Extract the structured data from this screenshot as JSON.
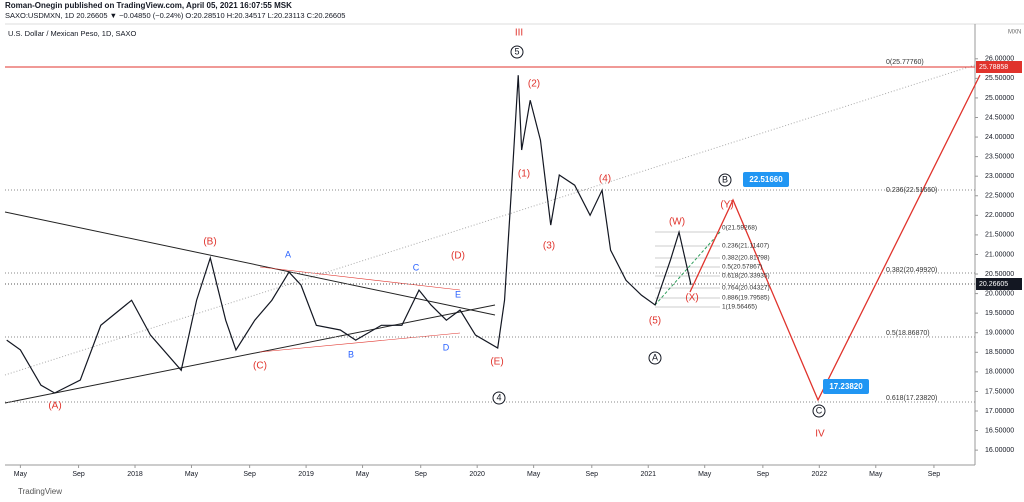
{
  "chart_data": {
    "type": "line",
    "header": {
      "publisher": "Roman-Onegin published on TradingView.com, April 05, 2021 16:07:55 MSK",
      "ticker": "SAXO:USDMXN, 1D 20.26605 ▼ −0.04850 (−0.24%) O:20.28510 H:20.34517 L:20.23113 C:20.26605"
    },
    "title": "U.S. Dollar / Mexican Peso, 1D, SAXO",
    "currency": "MXN",
    "footer": "TradingView",
    "series": [
      {
        "name": "USDMXN",
        "color": "#131722",
        "x": [
          2017.25,
          2017.33,
          2017.45,
          2017.53,
          2017.68,
          2017.8,
          2017.98,
          2018.09,
          2018.27,
          2018.36,
          2018.44,
          2018.53,
          2018.59,
          2018.7,
          2018.8,
          2018.9,
          2018.97,
          2019.06,
          2019.2,
          2019.29,
          2019.44,
          2019.56,
          2019.66,
          2019.73,
          2019.82,
          2019.9,
          2019.99,
          2020.12,
          2020.16,
          2020.2,
          2020.24,
          2020.26,
          2020.31,
          2020.37,
          2020.43,
          2020.48,
          2020.57,
          2020.66,
          2020.73,
          2020.78,
          2020.87,
          2020.96,
          2021.04,
          2021.13,
          2021.18,
          2021.25
        ],
        "values": [
          18.81,
          18.56,
          17.66,
          17.46,
          17.79,
          19.19,
          19.83,
          18.94,
          18.04,
          19.83,
          20.91,
          19.32,
          18.56,
          19.32,
          19.83,
          20.55,
          20.22,
          19.19,
          19.07,
          18.81,
          19.19,
          19.19,
          20.09,
          19.71,
          19.32,
          19.58,
          18.94,
          18.61,
          19.83,
          22.64,
          25.58,
          23.67,
          24.94,
          23.92,
          21.75,
          23.03,
          22.77,
          22.0,
          22.64,
          21.11,
          20.34,
          19.96,
          19.71,
          20.86,
          21.57,
          20.22
        ]
      }
    ],
    "xlim": [
      2017.24,
      2022.91
    ],
    "xticks": [
      {
        "value": 2017.33,
        "label": "May"
      },
      {
        "value": 2017.67,
        "label": "Sep"
      },
      {
        "value": 2018,
        "label": "2018"
      },
      {
        "value": 2018.33,
        "label": "May"
      },
      {
        "value": 2018.67,
        "label": "Sep"
      },
      {
        "value": 2019,
        "label": "2019"
      },
      {
        "value": 2019.33,
        "label": "May"
      },
      {
        "value": 2019.67,
        "label": "Sep"
      },
      {
        "value": 2020,
        "label": "2020"
      },
      {
        "value": 2020.33,
        "label": "May"
      },
      {
        "value": 2020.67,
        "label": "Sep"
      },
      {
        "value": 2021,
        "label": "2021"
      },
      {
        "value": 2021.33,
        "label": "May"
      },
      {
        "value": 2021.67,
        "label": "Sep"
      },
      {
        "value": 2022,
        "label": "2022"
      },
      {
        "value": 2022.33,
        "label": "May"
      },
      {
        "value": 2022.67,
        "label": "Sep"
      }
    ],
    "ylim": [
      15.62,
      26.94
    ],
    "yticks": [
      {
        "value": 16,
        "label": "16.00000"
      },
      {
        "value": 16.5,
        "label": "16.50000"
      },
      {
        "value": 17,
        "label": "17.00000"
      },
      {
        "value": 17.5,
        "label": "17.50000"
      },
      {
        "value": 18,
        "label": "18.00000"
      },
      {
        "value": 18.5,
        "label": "18.50000"
      },
      {
        "value": 19,
        "label": "19.00000"
      },
      {
        "value": 19.5,
        "label": "19.50000"
      },
      {
        "value": 20,
        "label": "20.00000"
      },
      {
        "value": 20.5,
        "label": "20.50000"
      },
      {
        "value": 21,
        "label": "21.00000"
      },
      {
        "value": 21.5,
        "label": "21.50000"
      },
      {
        "value": 22,
        "label": "22.00000"
      },
      {
        "value": 22.5,
        "label": "22.50000"
      },
      {
        "value": 23,
        "label": "23.00000"
      },
      {
        "value": 23.5,
        "label": "23.50000"
      },
      {
        "value": 24,
        "label": "24.00000"
      },
      {
        "value": 24.5,
        "label": "24.50000"
      },
      {
        "value": 25,
        "label": "25.00000"
      },
      {
        "value": 25.5,
        "label": "25.50000"
      },
      {
        "value": 26,
        "label": "26.00000"
      }
    ],
    "price_badges": [
      "25.78858",
      "20.26605"
    ],
    "target_badges": [
      "22.51660",
      "17.23820"
    ],
    "waves": [
      "III",
      "5",
      "(2)",
      "(1)",
      "(3)",
      "(4)",
      "(W)",
      "(X)",
      "(Y)",
      "(5)",
      "B",
      "A",
      "C",
      "IV",
      "4",
      "(A)",
      "(B)",
      "(C)",
      "(D)",
      "(E)",
      "A",
      "B",
      "C",
      "D",
      "E"
    ],
    "fib": [
      "0(25.77760)",
      "0.236(22.51660)",
      "0.382(20.49920)",
      "0.5(18.86870)",
      "0.618(17.23820)"
    ],
    "fib_small": [
      "0(21.59268)",
      "0.236(21.11407)",
      "0.382(20.81798)",
      "0.5(20.57867)",
      "0.618(20.33935)",
      "0.764(20.04327)",
      "0.886(19.79585)",
      "1(19.56465)"
    ]
  }
}
